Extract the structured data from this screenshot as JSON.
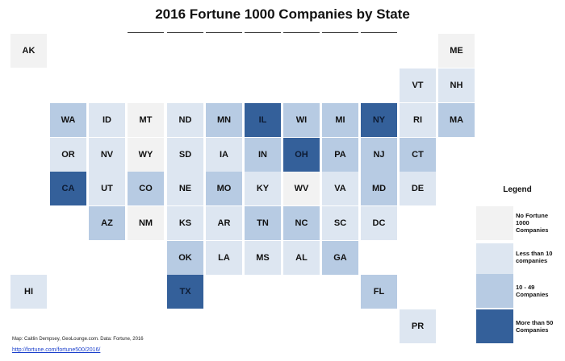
{
  "title": "2016 Fortune 1000 Companies by State",
  "colors": {
    "no_companies": "#f2f2f2",
    "less_than_10": "#dde6f1",
    "ten_to_49": "#b7cbe3",
    "more_than_50": "#34609a"
  },
  "states": [
    {
      "abbr": "AK",
      "category": 0
    },
    {
      "abbr": "ME",
      "category": 0
    },
    {
      "abbr": "VT",
      "category": 1
    },
    {
      "abbr": "NH",
      "category": 1
    },
    {
      "abbr": "WA",
      "category": 2
    },
    {
      "abbr": "ID",
      "category": 1
    },
    {
      "abbr": "MT",
      "category": 0
    },
    {
      "abbr": "ND",
      "category": 1
    },
    {
      "abbr": "MN",
      "category": 2
    },
    {
      "abbr": "IL",
      "category": 3
    },
    {
      "abbr": "WI",
      "category": 2
    },
    {
      "abbr": "MI",
      "category": 2
    },
    {
      "abbr": "NY",
      "category": 3
    },
    {
      "abbr": "RI",
      "category": 1
    },
    {
      "abbr": "MA",
      "category": 2
    },
    {
      "abbr": "OR",
      "category": 1
    },
    {
      "abbr": "NV",
      "category": 1
    },
    {
      "abbr": "WY",
      "category": 0
    },
    {
      "abbr": "SD",
      "category": 1
    },
    {
      "abbr": "IA",
      "category": 1
    },
    {
      "abbr": "IN",
      "category": 2
    },
    {
      "abbr": "OH",
      "category": 3
    },
    {
      "abbr": "PA",
      "category": 2
    },
    {
      "abbr": "NJ",
      "category": 2
    },
    {
      "abbr": "CT",
      "category": 2
    },
    {
      "abbr": "CA",
      "category": 3
    },
    {
      "abbr": "UT",
      "category": 1
    },
    {
      "abbr": "CO",
      "category": 2
    },
    {
      "abbr": "NE",
      "category": 1
    },
    {
      "abbr": "MO",
      "category": 2
    },
    {
      "abbr": "KY",
      "category": 1
    },
    {
      "abbr": "WV",
      "category": 0
    },
    {
      "abbr": "VA",
      "category": 1
    },
    {
      "abbr": "MD",
      "category": 2
    },
    {
      "abbr": "DE",
      "category": 1
    },
    {
      "abbr": "AZ",
      "category": 2
    },
    {
      "abbr": "NM",
      "category": 0
    },
    {
      "abbr": "KS",
      "category": 1
    },
    {
      "abbr": "AR",
      "category": 1
    },
    {
      "abbr": "TN",
      "category": 2
    },
    {
      "abbr": "NC",
      "category": 2
    },
    {
      "abbr": "SC",
      "category": 1
    },
    {
      "abbr": "DC",
      "category": 1
    },
    {
      "abbr": "OK",
      "category": 2
    },
    {
      "abbr": "LA",
      "category": 1
    },
    {
      "abbr": "MS",
      "category": 1
    },
    {
      "abbr": "AL",
      "category": 1
    },
    {
      "abbr": "GA",
      "category": 2
    },
    {
      "abbr": "HI",
      "category": 1
    },
    {
      "abbr": "TX",
      "category": 3
    },
    {
      "abbr": "FL",
      "category": 2
    },
    {
      "abbr": "PR",
      "category": 1
    }
  ],
  "legend": {
    "title": "Legend",
    "items": [
      {
        "label": "No Fortune 1000 Companies",
        "category": 0
      },
      {
        "label": "Less than 10 companies",
        "category": 1
      },
      {
        "label": "10 - 49 Companies",
        "category": 2
      },
      {
        "label": "More than 50 Companies",
        "category": 3
      }
    ]
  },
  "footer": {
    "credit": "Map: Caitlin Dempsey, GeoLounge.com.  Data: Fortune, 2016",
    "link": "http://fortune.com/fortune500/2016/"
  }
}
